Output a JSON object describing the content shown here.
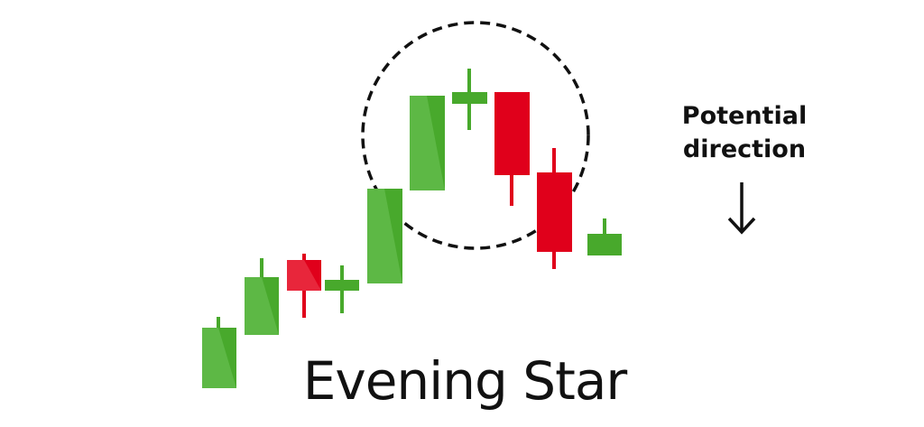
{
  "title": "Evening Star",
  "direction": {
    "line1": "Potential",
    "line2": "direction",
    "arrow_icon": "down-arrow-icon"
  },
  "colors": {
    "bullish": "#48a92c",
    "bullish_light": "#5db845",
    "bearish": "#e0001b",
    "bearish_light": "#e8263b",
    "circle": "#111111",
    "text": "#111111"
  }
}
